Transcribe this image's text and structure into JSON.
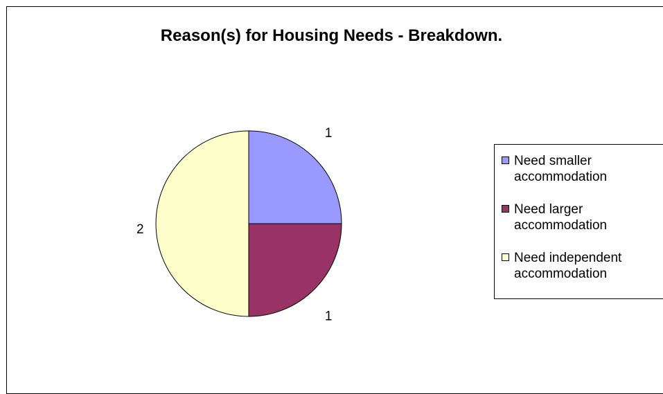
{
  "chart_data": {
    "type": "pie",
    "title": "Reason(s) for Housing Needs - Breakdown.",
    "categories": [
      "Need smaller accommodation",
      "Need larger accommodation",
      "Need independent accommodation"
    ],
    "values": [
      1,
      1,
      2
    ],
    "data_labels": [
      "1",
      "1",
      "2"
    ],
    "colors": [
      "#9999ff",
      "#993366",
      "#ffffcc"
    ],
    "legend_position": "right"
  }
}
